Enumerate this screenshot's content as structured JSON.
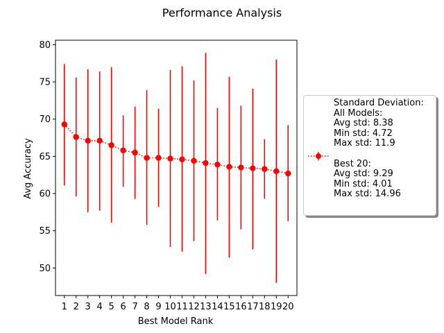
{
  "chart_data": {
    "type": "line",
    "title": "Performance Analysis",
    "xlabel": "Best Model Rank",
    "ylabel": "Avg Accuracy",
    "xlim": [
      0.25,
      20.75
    ],
    "ylim": [
      46.3,
      80.6
    ],
    "yticks": [
      50,
      55,
      60,
      65,
      70,
      75,
      80
    ],
    "categories": [
      "1",
      "2",
      "3",
      "4",
      "5",
      "6",
      "7",
      "8",
      "9",
      "10",
      "11",
      "12",
      "13",
      "14",
      "15",
      "16",
      "17",
      "18",
      "19",
      "20"
    ],
    "series": [
      {
        "name": "Standard Deviation:\nAll Models:\nAvg std: 8.38\nMin std: 4.72\nMax std: 11.9\n\nBest 20:\nAvg std: 9.29\nMin std: 4.01\nMax std: 14.96",
        "color": "#ff0000",
        "marker": "circle",
        "linestyle": "dotted",
        "values": [
          69.3,
          67.6,
          67.1,
          67.1,
          66.5,
          65.8,
          65.5,
          64.8,
          64.8,
          64.7,
          64.6,
          64.4,
          64.1,
          63.9,
          63.6,
          63.5,
          63.4,
          63.3,
          63.0,
          62.7
        ],
        "error_low": [
          61.1,
          59.6,
          57.5,
          57.7,
          56.1,
          60.9,
          59.3,
          55.8,
          58.2,
          52.8,
          52.2,
          53.6,
          49.2,
          56.4,
          51.4,
          55.2,
          52.5,
          59.3,
          48.0,
          56.3
        ],
        "error_high": [
          77.4,
          75.6,
          76.7,
          76.4,
          77.0,
          70.5,
          71.7,
          73.9,
          71.4,
          76.6,
          77.1,
          75.2,
          78.9,
          71.5,
          75.7,
          71.8,
          74.1,
          67.3,
          78.0,
          69.2
        ]
      }
    ],
    "legend": {
      "position": "right-outside"
    },
    "grid": false
  }
}
